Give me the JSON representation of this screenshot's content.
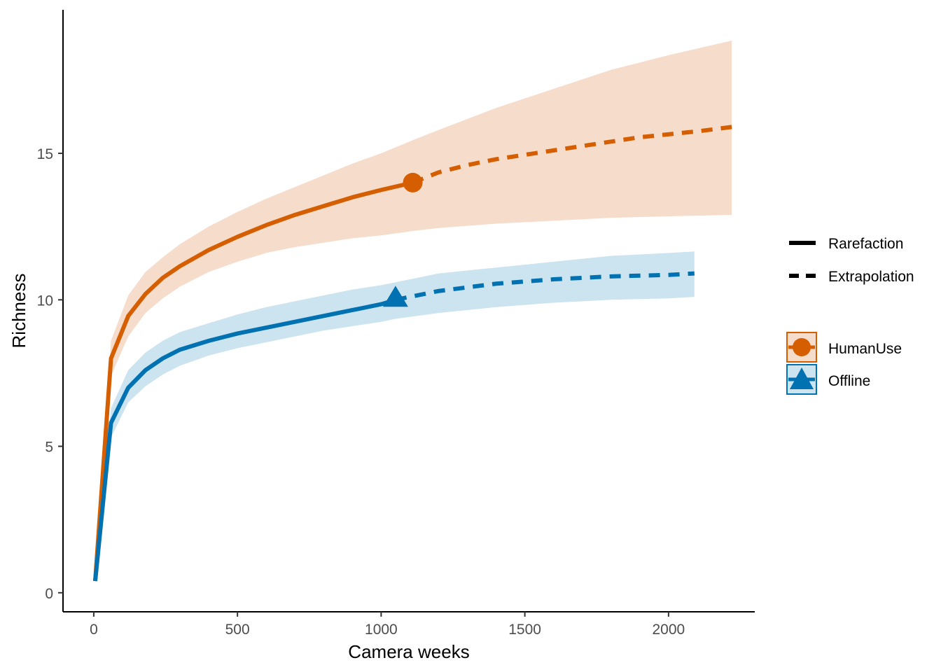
{
  "chart_data": {
    "type": "line",
    "title": "",
    "xlabel": "Camera weeks",
    "ylabel": "Richness",
    "xlim": [
      -107,
      2300
    ],
    "ylim": [
      -0.65,
      19.9
    ],
    "x_ticks": [
      0,
      500,
      1000,
      1500,
      2000
    ],
    "y_ticks": [
      0,
      5,
      10,
      15
    ],
    "grid": false,
    "legend_position": "right",
    "method_legend": [
      {
        "label": "Rarefaction",
        "linetype": "solid"
      },
      {
        "label": "Extrapolation",
        "linetype": "dashed"
      }
    ],
    "series": [
      {
        "name": "HumanUse",
        "color": "#D55E00",
        "fill": "#F6DCCB",
        "marker": "circle",
        "observed": {
          "x": 1110,
          "y": 14.0
        },
        "rarefaction": {
          "x": [
            5,
            60,
            120,
            180,
            240,
            300,
            400,
            500,
            600,
            700,
            800,
            900,
            1000,
            1110
          ],
          "y": [
            0.4,
            8.0,
            9.45,
            10.2,
            10.75,
            11.15,
            11.7,
            12.15,
            12.55,
            12.9,
            13.2,
            13.5,
            13.75,
            14.0
          ]
        },
        "extrapolation": {
          "x": [
            1110,
            1200,
            1300,
            1400,
            1500,
            1600,
            1700,
            1800,
            1900,
            2000,
            2100,
            2220
          ],
          "y": [
            14.0,
            14.35,
            14.6,
            14.8,
            14.95,
            15.1,
            15.25,
            15.4,
            15.55,
            15.65,
            15.75,
            15.9
          ]
        },
        "band": {
          "x": [
            5,
            60,
            120,
            180,
            240,
            300,
            400,
            500,
            600,
            700,
            800,
            900,
            1000,
            1110,
            1200,
            1400,
            1600,
            1800,
            2000,
            2220
          ],
          "lower": [
            0.3,
            7.4,
            8.75,
            9.55,
            10.05,
            10.45,
            10.95,
            11.3,
            11.6,
            11.8,
            11.95,
            12.1,
            12.2,
            12.35,
            12.45,
            12.6,
            12.7,
            12.8,
            12.85,
            12.9
          ],
          "upper": [
            0.5,
            8.6,
            10.15,
            10.95,
            11.45,
            11.9,
            12.5,
            13.0,
            13.45,
            13.85,
            14.25,
            14.65,
            15.0,
            15.45,
            15.8,
            16.55,
            17.2,
            17.85,
            18.35,
            18.85
          ]
        }
      },
      {
        "name": "Offline",
        "color": "#0072B2",
        "fill": "#CCE3F0",
        "marker": "triangle",
        "observed": {
          "x": 1050,
          "y": 10.0
        },
        "rarefaction": {
          "x": [
            5,
            60,
            120,
            180,
            240,
            300,
            400,
            500,
            600,
            700,
            800,
            900,
            1000,
            1050
          ],
          "y": [
            0.4,
            5.8,
            7.0,
            7.6,
            8.0,
            8.3,
            8.6,
            8.85,
            9.05,
            9.25,
            9.45,
            9.65,
            9.85,
            10.0
          ]
        },
        "extrapolation": {
          "x": [
            1050,
            1200,
            1400,
            1600,
            1800,
            2000,
            2090
          ],
          "y": [
            10.0,
            10.3,
            10.55,
            10.7,
            10.8,
            10.85,
            10.9
          ]
        },
        "band": {
          "x": [
            5,
            60,
            120,
            180,
            240,
            300,
            400,
            500,
            600,
            700,
            800,
            900,
            1000,
            1050,
            1200,
            1400,
            1600,
            1800,
            2000,
            2090
          ],
          "lower": [
            0.3,
            5.3,
            6.5,
            7.05,
            7.45,
            7.75,
            8.1,
            8.35,
            8.55,
            8.75,
            8.95,
            9.1,
            9.25,
            9.35,
            9.55,
            9.75,
            9.9,
            10.0,
            10.05,
            10.1
          ],
          "upper": [
            0.5,
            6.3,
            7.6,
            8.2,
            8.6,
            8.9,
            9.2,
            9.5,
            9.75,
            9.95,
            10.15,
            10.35,
            10.5,
            10.6,
            10.9,
            11.1,
            11.3,
            11.5,
            11.6,
            11.65
          ]
        }
      }
    ]
  }
}
